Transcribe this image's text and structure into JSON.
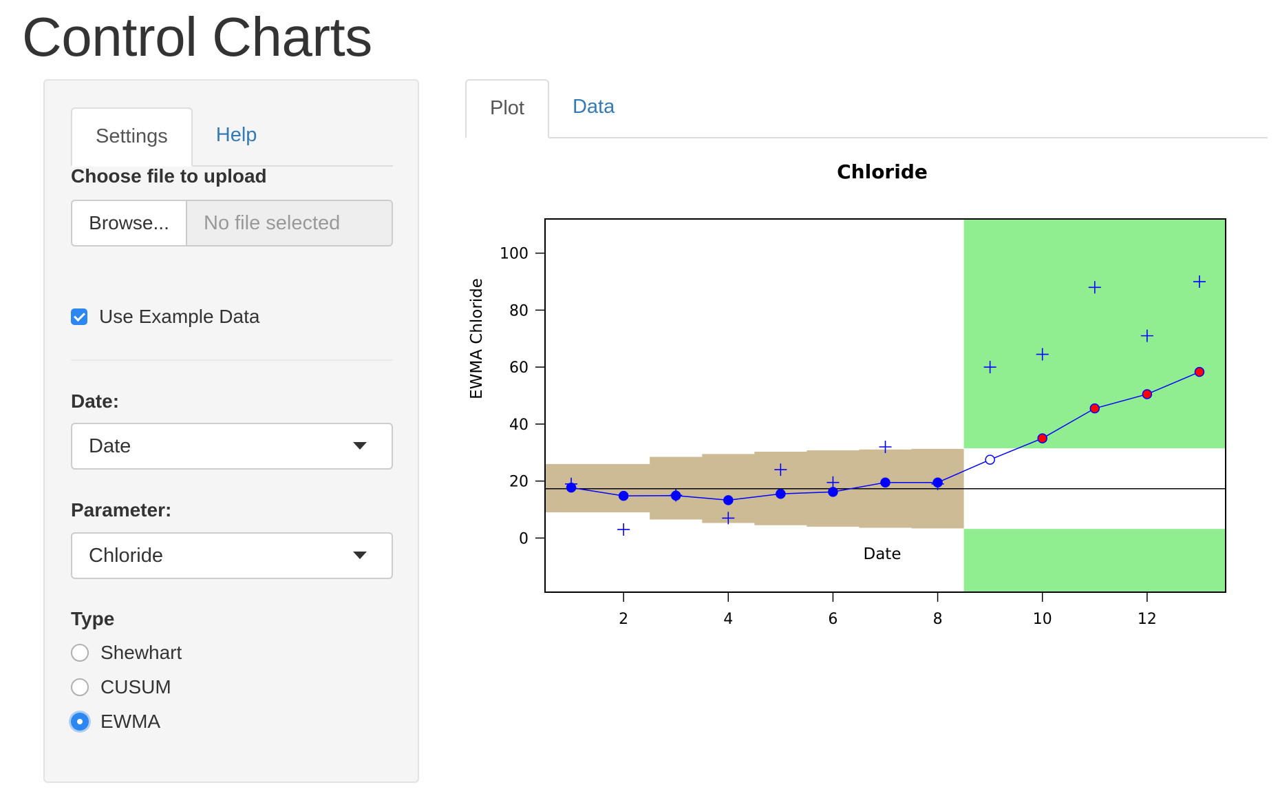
{
  "page": {
    "title": "Control Charts"
  },
  "sidebar": {
    "tabs": [
      {
        "label": "Settings",
        "active": true
      },
      {
        "label": "Help",
        "active": false
      }
    ],
    "file_upload": {
      "label": "Choose file to upload",
      "button_label": "Browse...",
      "placeholder": "No file selected"
    },
    "example_data": {
      "label": "Use Example Data",
      "checked": true
    },
    "date_select": {
      "label": "Date:",
      "value": "Date"
    },
    "parameter_select": {
      "label": "Parameter:",
      "value": "Chloride"
    },
    "type": {
      "label": "Type",
      "options": [
        {
          "label": "Shewhart",
          "checked": false
        },
        {
          "label": "CUSUM",
          "checked": false
        },
        {
          "label": "EWMA",
          "checked": true
        }
      ]
    }
  },
  "main": {
    "tabs": [
      {
        "label": "Plot",
        "active": true
      },
      {
        "label": "Data",
        "active": false
      }
    ]
  },
  "colors": {
    "accent": "#2d87f0",
    "link": "#337ab7",
    "control_band": "#cdbb95",
    "out_of_control_band": "#90ee90",
    "series": "#0000ff",
    "out_of_control_point": "#ff0000"
  },
  "chart_data": {
    "type": "line",
    "title": "Chloride",
    "xlabel": "Date",
    "ylabel": "EWMA Chloride",
    "xlim": [
      0.5,
      13.5
    ],
    "ylim": [
      -19,
      112
    ],
    "x_ticks": [
      2,
      4,
      6,
      8,
      10,
      12
    ],
    "y_ticks": [
      0,
      20,
      40,
      60,
      80,
      100
    ],
    "center_line": 17.3,
    "observations": {
      "x": [
        1,
        2,
        3,
        4,
        5,
        6,
        7,
        8,
        9,
        10,
        11,
        12,
        13
      ],
      "values": [
        19,
        3,
        15,
        7,
        24,
        19.5,
        32,
        19,
        60,
        64.5,
        88,
        71,
        90
      ]
    },
    "ewma": {
      "x": [
        1,
        2,
        3,
        4,
        5,
        6,
        7,
        8,
        9,
        10,
        11,
        12,
        13
      ],
      "values": [
        17.7,
        14.8,
        14.9,
        13.3,
        15.5,
        16.2,
        19.5,
        19.5,
        27.5,
        35,
        45.5,
        50.5,
        58.3
      ],
      "status": [
        "baseline",
        "baseline",
        "baseline",
        "baseline",
        "baseline",
        "baseline",
        "baseline",
        "baseline",
        "in-control",
        "out-of-control",
        "out-of-control",
        "out-of-control",
        "out-of-control"
      ]
    },
    "baseline_limits": {
      "x": [
        0.5,
        1.5,
        2.5,
        3.5,
        4.5,
        5.5,
        6.5,
        7.5,
        8.5
      ],
      "upper": [
        26,
        26,
        28.5,
        29.5,
        30.3,
        30.8,
        31.1,
        31.3,
        31.4
      ],
      "lower": [
        9,
        9,
        6.5,
        5.3,
        4.5,
        4,
        3.6,
        3.4,
        3.3
      ]
    },
    "monitoring_region": {
      "x_start": 8.5,
      "upper_limit": 31.5,
      "lower_limit": 3.2
    }
  }
}
